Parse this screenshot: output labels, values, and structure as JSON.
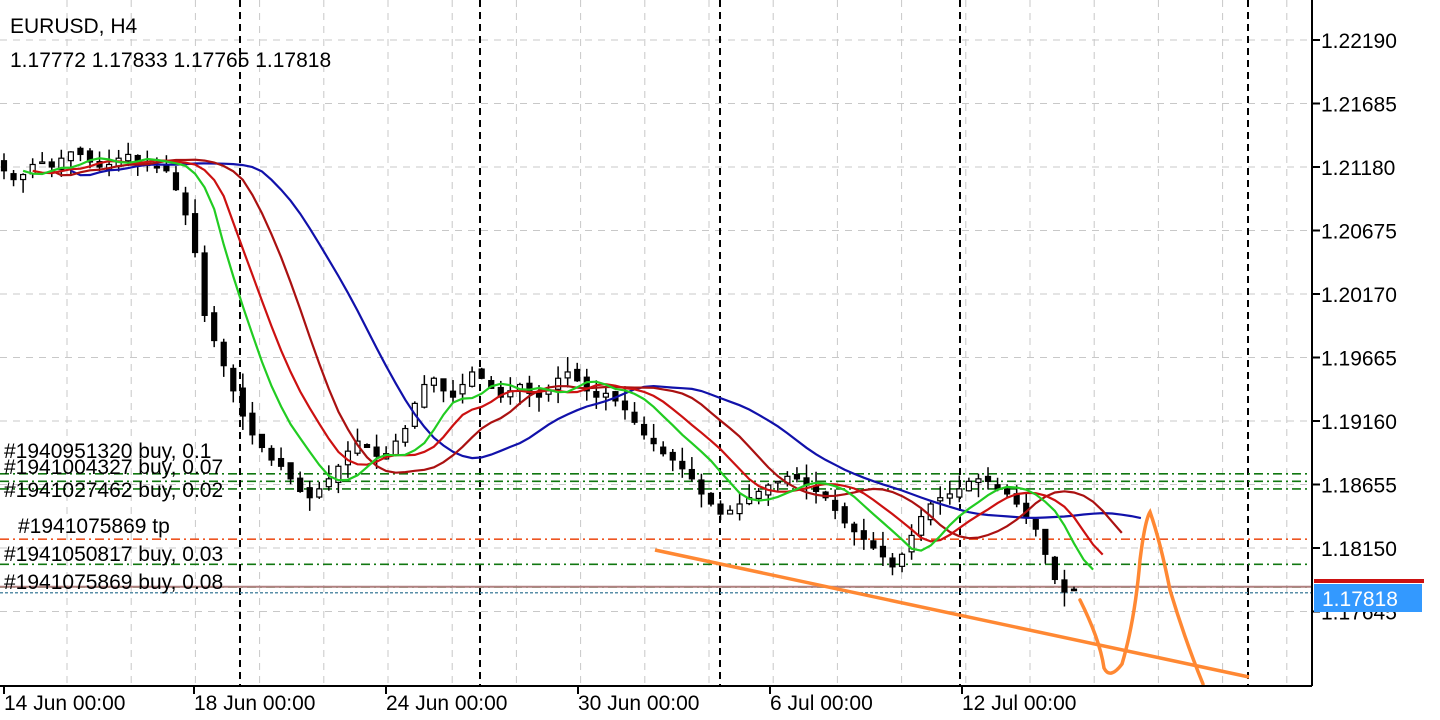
{
  "header": {
    "symbol_timeframe": "EURUSD, H4",
    "ohlc": "1.17772 1.17833 1.17765 1.17818"
  },
  "colors": {
    "background": "#ffffff",
    "grid": "#c8c8c8",
    "candle": "#000000",
    "ma_fast": "#22cc22",
    "ma_mid": "#cc1111",
    "ma_slow": "#aa1111",
    "ma_long": "#1111aa",
    "order_line": "#117711",
    "tp_line": "#ee5522",
    "drawing": "#ff8833",
    "bid_line": "#cc1111",
    "current_price_bg": "#3399ff"
  },
  "chart_data": {
    "type": "candlestick",
    "symbol": "EURUSD",
    "timeframe": "H4",
    "ylim": [
      1.172,
      1.224
    ],
    "y_ticks": [
      "1.22190",
      "1.21685",
      "1.21180",
      "1.20675",
      "1.20170",
      "1.19665",
      "1.19160",
      "1.18655",
      "1.18150",
      "1.17645"
    ],
    "x_ticks": [
      "14 Jun 00:00",
      "18 Jun 00:00",
      "24 Jun 00:00",
      "30 Jun 00:00",
      "6 Jul 00:00",
      "12 Jul 00:00"
    ],
    "current_price": "1.17818",
    "close_series": [
      1.2115,
      1.2108,
      1.2112,
      1.212,
      1.2122,
      1.2118,
      1.2125,
      1.213,
      1.2128,
      1.2122,
      1.2118,
      1.212,
      1.2125,
      1.2128,
      1.2122,
      1.212,
      1.2118,
      1.2115,
      1.21,
      1.208,
      1.205,
      1.2,
      1.198,
      1.196,
      1.194,
      1.192,
      1.1905,
      1.1895,
      1.1885,
      1.188,
      1.187,
      1.186,
      1.1855,
      1.1862,
      1.187,
      1.188,
      1.1892,
      1.19,
      1.1895,
      1.1888,
      1.189,
      1.19,
      1.191,
      1.193,
      1.1945,
      1.195,
      1.194,
      1.1935,
      1.1945,
      1.1955,
      1.195,
      1.1942,
      1.1935,
      1.194,
      1.1945,
      1.1938,
      1.1935,
      1.194,
      1.195,
      1.1955,
      1.1948,
      1.194,
      1.1935,
      1.1938,
      1.1932,
      1.1925,
      1.1915,
      1.1905,
      1.1898,
      1.189,
      1.1885,
      1.1878,
      1.187,
      1.1858,
      1.185,
      1.1842,
      1.1845,
      1.185,
      1.1855,
      1.186,
      1.1865,
      1.1868,
      1.1872,
      1.187,
      1.1865,
      1.186,
      1.1855,
      1.1845,
      1.1835,
      1.1828,
      1.1822,
      1.1815,
      1.1808,
      1.18,
      1.181,
      1.1825,
      1.184,
      1.185,
      1.1855,
      1.1858,
      1.1862,
      1.1868,
      1.187,
      1.1868,
      1.1862,
      1.1858,
      1.185,
      1.184,
      1.183,
      1.181,
      1.179,
      1.178,
      1.1782
    ],
    "orders": [
      {
        "label": "#1940951320 buy, 0.1",
        "price": 1.1874,
        "kind": "buy"
      },
      {
        "label": "#1941004327 buy, 0.07",
        "price": 1.1868,
        "kind": "buy"
      },
      {
        "label": "#1941027462 buy, 0.02",
        "price": 1.1862,
        "kind": "buy"
      },
      {
        "label": "#1941075869 tp",
        "price": 1.1822,
        "kind": "tp"
      },
      {
        "label": "#1941050817 buy, 0.03",
        "price": 1.1802,
        "kind": "buy"
      },
      {
        "label": "#1941075869 buy, 0.08",
        "price": 1.1784,
        "kind": "buy"
      }
    ]
  }
}
